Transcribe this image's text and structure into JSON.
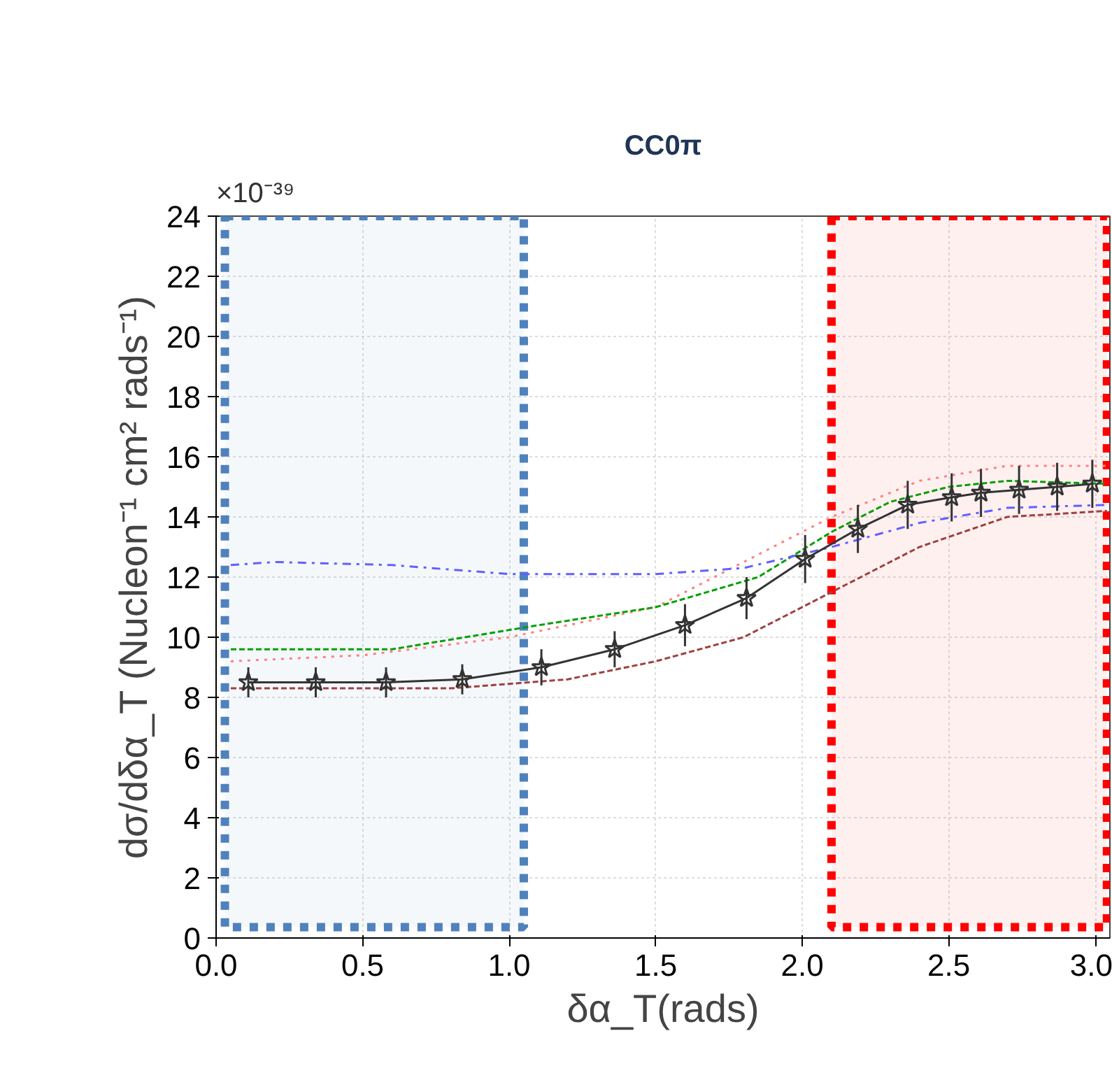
{
  "chart_data": {
    "type": "line",
    "title": "CC0π",
    "xlabel": "δα_T(rads)",
    "ylabel": "dσ/dδα_T (Nucleon⁻¹ cm² rads⁻¹)",
    "annotations": [
      "×10⁻³⁹"
    ],
    "xlim": [
      0,
      3.05
    ],
    "ylim": [
      0,
      24
    ],
    "xticks": [
      {
        "value": 0,
        "label": "0.0"
      },
      {
        "value": 0.5,
        "label": "0.5"
      },
      {
        "value": 1,
        "label": "1.0"
      },
      {
        "value": 1.5,
        "label": "1.5"
      },
      {
        "value": 2,
        "label": "2.0"
      },
      {
        "value": 2.5,
        "label": "2.5"
      },
      {
        "value": 3,
        "label": "3.0"
      }
    ],
    "yticks": [
      0,
      2,
      4,
      6,
      8,
      10,
      12,
      14,
      16,
      18,
      20,
      22,
      24
    ],
    "grid": true,
    "bands": [
      {
        "axis": "x",
        "from": 0.03,
        "to": 1.05,
        "color": "#4f81bd"
      },
      {
        "axis": "x",
        "from": 2.1,
        "to": 3.04,
        "color": "#ff0000"
      }
    ],
    "series": [
      {
        "color": "#a04040",
        "line_style": "dashed",
        "marker": "none",
        "x": [
          0.05,
          0.4,
          0.8,
          1.2,
          1.5,
          1.8,
          2.1,
          2.4,
          2.7,
          3.04
        ],
        "values": [
          8.3,
          8.3,
          8.3,
          8.6,
          9.2,
          10.0,
          11.5,
          13.0,
          14.0,
          14.2
        ]
      },
      {
        "color": "#ff8080",
        "line_style": "dotted",
        "marker": "none",
        "x": [
          0.05,
          0.5,
          1.0,
          1.5,
          1.8,
          2.1,
          2.4,
          2.7,
          3.04
        ],
        "values": [
          9.2,
          9.4,
          10.0,
          11.0,
          12.5,
          14.0,
          15.2,
          15.7,
          15.7
        ]
      },
      {
        "color": "#00a000",
        "line_style": "dashed",
        "marker": "none",
        "x": [
          0.05,
          0.6,
          0.85,
          1.1,
          1.5,
          1.85,
          2.1,
          2.3,
          2.5,
          2.7,
          3.04
        ],
        "values": [
          9.6,
          9.6,
          10.0,
          10.4,
          11.0,
          12.0,
          13.5,
          14.5,
          15.0,
          15.2,
          15.1
        ]
      },
      {
        "color": "#6060ff",
        "line_style": "dashdot",
        "marker": "none",
        "x": [
          0.05,
          0.2,
          0.6,
          1.0,
          1.5,
          1.8,
          2.1,
          2.4,
          2.7,
          3.04
        ],
        "values": [
          12.4,
          12.5,
          12.4,
          12.1,
          12.1,
          12.3,
          13.0,
          13.8,
          14.3,
          14.4
        ]
      },
      {
        "color": "#333333",
        "line_style": "solid",
        "marker": "star",
        "x": [
          0.11,
          0.34,
          0.58,
          0.84,
          1.11,
          1.36,
          1.6,
          1.81,
          2.01,
          2.19,
          2.36,
          2.51,
          2.61,
          2.74,
          2.87,
          2.99
        ],
        "values": [
          8.5,
          8.5,
          8.5,
          8.6,
          9.0,
          9.6,
          10.4,
          11.3,
          12.6,
          13.6,
          14.4,
          14.65,
          14.8,
          14.9,
          15.0,
          15.1
        ],
        "errors": [
          0.5,
          0.5,
          0.5,
          0.5,
          0.6,
          0.6,
          0.7,
          0.7,
          0.8,
          0.8,
          0.8,
          0.8,
          0.8,
          0.8,
          0.8,
          0.8
        ]
      }
    ]
  }
}
